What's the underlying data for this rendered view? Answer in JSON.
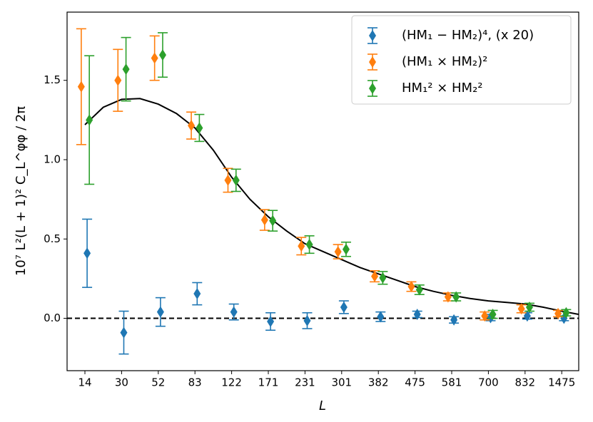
{
  "chart_data": {
    "type": "errorbar",
    "xlabel": "L",
    "ylabel": "10⁷ L²(L + 1)² C_L^φφ / 2π",
    "categories": [
      "14",
      "30",
      "52",
      "83",
      "122",
      "171",
      "231",
      "301",
      "382",
      "475",
      "581",
      "700",
      "832",
      "1475"
    ],
    "ylim": [
      -0.33,
      1.93
    ],
    "yticks": [
      {
        "value": 0,
        "label": "0.0"
      },
      {
        "value": 0.5,
        "label": "0.5"
      },
      {
        "value": 1,
        "label": "1.0"
      },
      {
        "value": 1.5,
        "label": "1.5"
      }
    ],
    "reference_line": 0,
    "legend": "upper right",
    "series": [
      {
        "name": "(HM₁ − HM₂)⁴, (x 20)",
        "color": "#1f77b4",
        "values": [
          0.41,
          -0.09,
          0.04,
          0.155,
          0.04,
          -0.02,
          -0.015,
          0.07,
          0.01,
          0.025,
          -0.01,
          0.005,
          0.015,
          0.0
        ],
        "errors": [
          0.215,
          0.135,
          0.09,
          0.07,
          0.05,
          0.055,
          0.05,
          0.04,
          0.03,
          0.02,
          0.02,
          0.02,
          0.02,
          0.015
        ]
      },
      {
        "name": "(HM₁ × HM₂)²",
        "color": "#ff7f0e",
        "values": [
          1.46,
          1.5,
          1.64,
          1.215,
          0.87,
          0.62,
          0.455,
          0.42,
          0.265,
          0.2,
          0.135,
          0.015,
          0.06,
          0.03
        ],
        "errors": [
          0.365,
          0.195,
          0.14,
          0.085,
          0.075,
          0.065,
          0.055,
          0.045,
          0.035,
          0.03,
          0.025,
          0.025,
          0.025,
          0.02
        ]
      },
      {
        "name": "HM₁² × HM₂²",
        "color": "#2ca02c",
        "values": [
          1.25,
          1.57,
          1.66,
          1.2,
          0.87,
          0.615,
          0.465,
          0.435,
          0.255,
          0.18,
          0.135,
          0.025,
          0.07,
          0.035
        ],
        "errors": [
          0.405,
          0.2,
          0.14,
          0.085,
          0.07,
          0.065,
          0.055,
          0.045,
          0.04,
          0.03,
          0.025,
          0.025,
          0.025,
          0.02
        ]
      }
    ],
    "curve": {
      "color": "#000000",
      "x": [
        0,
        0.5,
        1,
        1.5,
        2,
        2.5,
        3,
        3.5,
        4,
        4.5,
        5,
        5.5,
        6,
        6.5,
        7,
        7.5,
        8,
        8.5,
        9,
        9.5,
        10,
        10.5,
        11,
        11.5,
        12,
        12.5,
        13,
        13.46
      ],
      "values": [
        1.22,
        1.33,
        1.38,
        1.385,
        1.35,
        1.29,
        1.2,
        1.06,
        0.89,
        0.75,
        0.64,
        0.55,
        0.47,
        0.42,
        0.37,
        0.32,
        0.28,
        0.24,
        0.2,
        0.17,
        0.145,
        0.125,
        0.11,
        0.1,
        0.09,
        0.07,
        0.045,
        0.025
      ]
    }
  }
}
